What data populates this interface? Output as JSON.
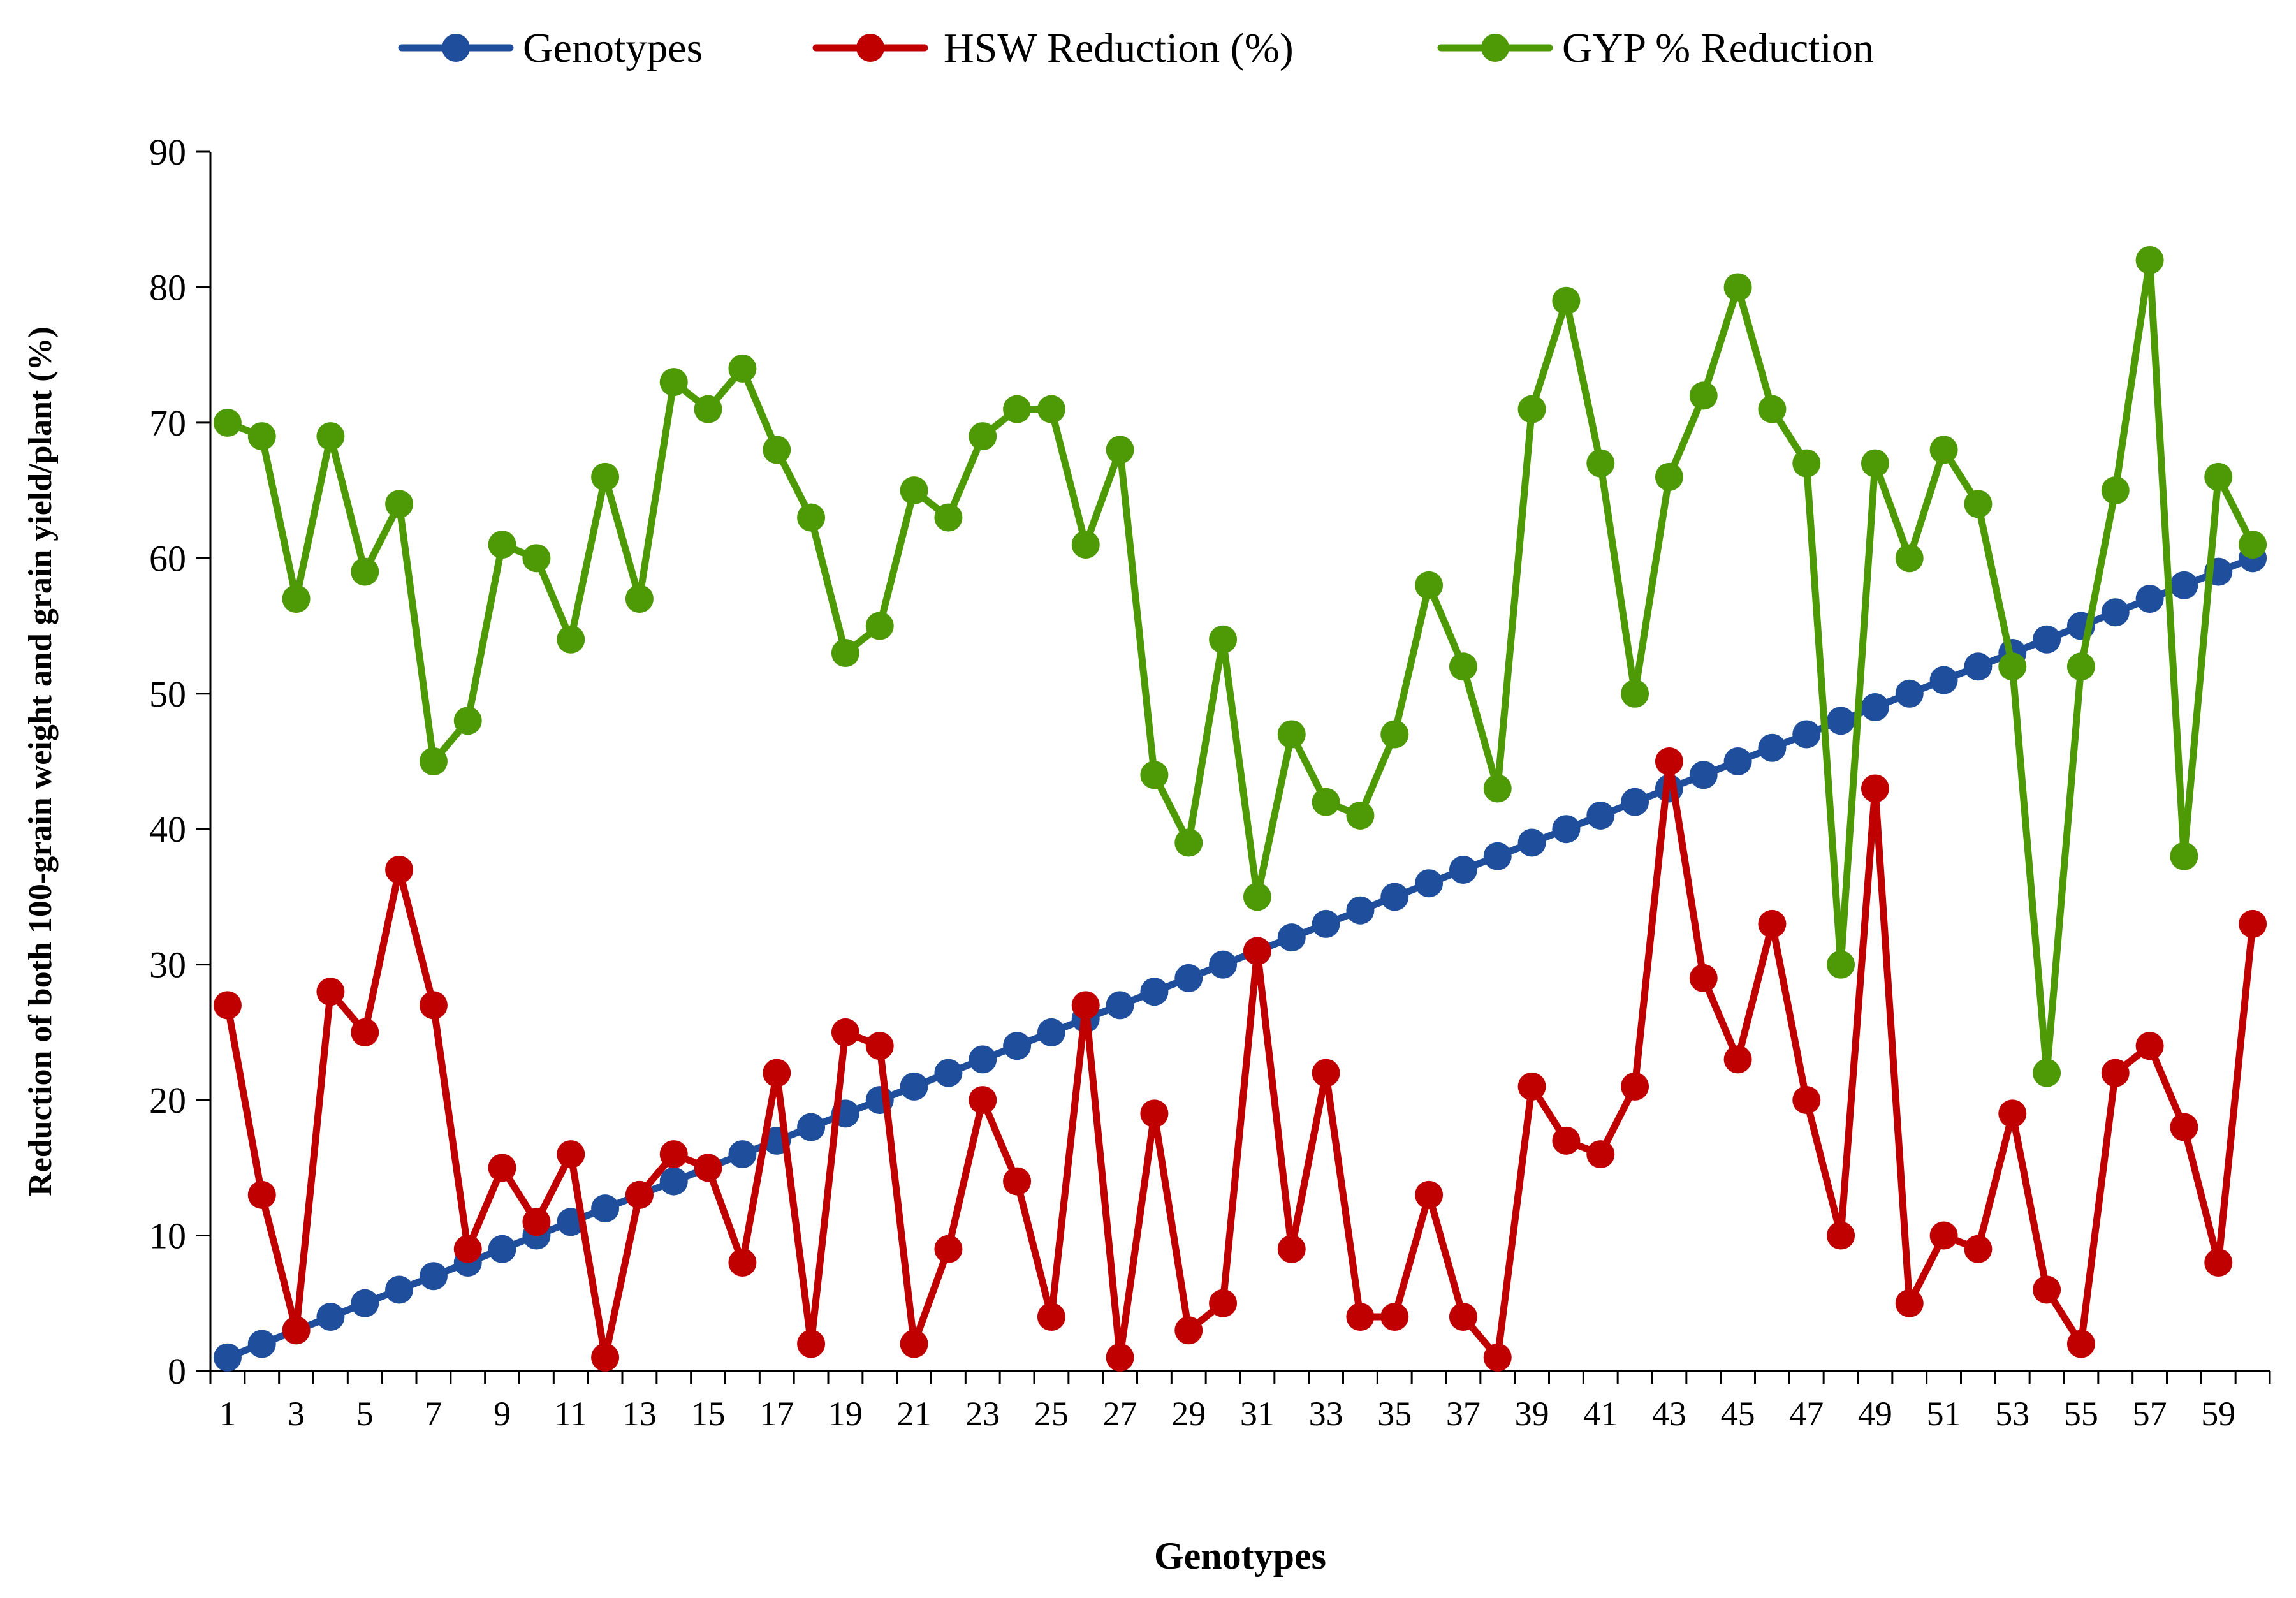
{
  "chart_data": {
    "type": "line",
    "title": "",
    "xlabel": "Genotypes",
    "ylabel": "Reduction of both 100-grain weight and grain yield/plant (%)",
    "ylim": [
      0,
      90
    ],
    "y_ticks": [
      0,
      10,
      20,
      30,
      40,
      50,
      60,
      70,
      80,
      90
    ],
    "x_tick_labels": [
      "1",
      "3",
      "5",
      "7",
      "9",
      "11",
      "13",
      "15",
      "17",
      "19",
      "21",
      "23",
      "25",
      "27",
      "29",
      "31",
      "33",
      "35",
      "37",
      "39",
      "41",
      "43",
      "45",
      "47",
      "49",
      "51",
      "53",
      "55",
      "57",
      "59"
    ],
    "legend_position": "top-center",
    "grid": false,
    "x": [
      1,
      2,
      3,
      4,
      5,
      6,
      7,
      8,
      9,
      10,
      11,
      12,
      13,
      14,
      15,
      16,
      17,
      18,
      19,
      20,
      21,
      22,
      23,
      24,
      25,
      26,
      27,
      28,
      29,
      30,
      31,
      32,
      33,
      34,
      35,
      36,
      37,
      38,
      39,
      40,
      41,
      42,
      43,
      44,
      45,
      46,
      47,
      48,
      49,
      50,
      51,
      52,
      53,
      54,
      55,
      56,
      57,
      58,
      59,
      60
    ],
    "series": [
      {
        "name": "Genotypes",
        "color": "#1f4e9c",
        "values": [
          1,
          2,
          3,
          4,
          5,
          6,
          7,
          8,
          9,
          10,
          11,
          12,
          13,
          14,
          15,
          16,
          17,
          18,
          19,
          20,
          21,
          22,
          23,
          24,
          25,
          26,
          27,
          28,
          29,
          30,
          31,
          32,
          33,
          34,
          35,
          36,
          37,
          38,
          39,
          40,
          41,
          42,
          43,
          44,
          45,
          46,
          47,
          48,
          49,
          50,
          51,
          52,
          53,
          54,
          55,
          56,
          57,
          58,
          59,
          60
        ]
      },
      {
        "name": "HSW Reduction (%)",
        "color": "#c00000",
        "values": [
          27,
          13,
          3,
          28,
          25,
          37,
          27,
          9,
          15,
          11,
          16,
          1,
          13,
          16,
          15,
          8,
          22,
          2,
          25,
          24,
          2,
          9,
          20,
          14,
          4,
          27,
          1,
          19,
          3,
          5,
          31,
          9,
          22,
          4,
          4,
          13,
          4,
          1,
          21,
          17,
          16,
          21,
          45,
          29,
          23,
          33,
          20,
          10,
          43,
          5,
          10,
          9,
          19,
          6,
          2,
          22,
          24,
          18,
          8,
          33
        ]
      },
      {
        "name": "GYP % Reduction",
        "color": "#4e9a06",
        "values": [
          70,
          69,
          57,
          69,
          59,
          64,
          45,
          48,
          61,
          60,
          54,
          66,
          57,
          73,
          71,
          74,
          68,
          63,
          53,
          55,
          65,
          63,
          69,
          71,
          71,
          61,
          68,
          44,
          39,
          54,
          35,
          47,
          42,
          41,
          47,
          58,
          52,
          43,
          71,
          79,
          67,
          50,
          66,
          72,
          80,
          71,
          67,
          30,
          67,
          60,
          68,
          64,
          52,
          22,
          52,
          65,
          82,
          38,
          66,
          61
        ]
      }
    ]
  }
}
